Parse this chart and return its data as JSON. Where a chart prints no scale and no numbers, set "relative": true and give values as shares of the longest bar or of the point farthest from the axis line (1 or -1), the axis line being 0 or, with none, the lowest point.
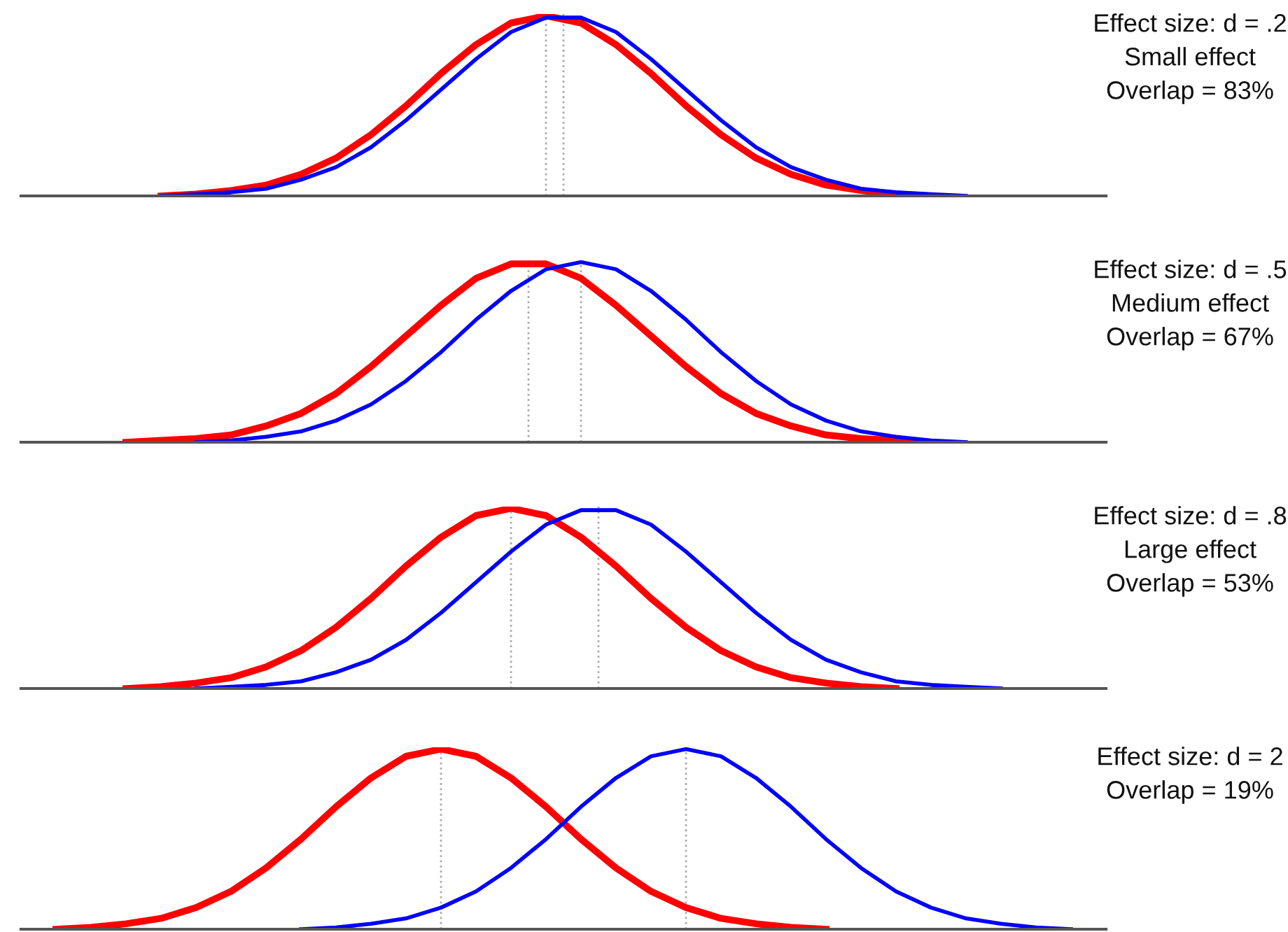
{
  "chart_data": [
    {
      "type": "line",
      "relative": true,
      "categories": [
        null,
        null,
        null,
        null,
        null,
        null,
        null,
        null,
        null,
        null,
        null,
        null,
        null,
        null,
        null,
        null,
        null,
        null,
        null,
        null,
        null,
        null,
        null,
        null,
        null,
        null,
        null,
        null,
        null,
        null,
        null,
        null
      ],
      "series": [
        {
          "color": "#ff0000",
          "values": [
            null,
            null,
            null,
            null,
            0,
            0.01,
            0.03,
            0.06,
            0.12,
            0.21,
            0.34,
            0.5,
            0.68,
            0.84,
            0.96,
            1,
            0.96,
            0.84,
            0.68,
            0.5,
            0.34,
            0.21,
            0.12,
            0.06,
            0.03,
            0.01,
            0,
            null,
            null,
            null,
            null,
            null
          ]
        },
        {
          "color": "#0000ff",
          "values": [
            null,
            null,
            null,
            null,
            0,
            0.01,
            0.02,
            0.04,
            0.09,
            0.16,
            0.27,
            0.42,
            0.59,
            0.76,
            0.91,
            0.99,
            0.99,
            0.91,
            0.76,
            0.59,
            0.42,
            0.27,
            0.16,
            0.09,
            0.04,
            0.02,
            0.01,
            0,
            null,
            null,
            null,
            null
          ]
        }
      ],
      "annotations": [
        "Effect size: d = .2",
        "Small effect",
        "Overlap = 83%"
      ]
    },
    {
      "type": "line",
      "relative": true,
      "categories": [
        null,
        null,
        null,
        null,
        null,
        null,
        null,
        null,
        null,
        null,
        null,
        null,
        null,
        null,
        null,
        null,
        null,
        null,
        null,
        null,
        null,
        null,
        null,
        null,
        null,
        null,
        null,
        null,
        null,
        null,
        null,
        null
      ],
      "series": [
        {
          "color": "#ff0000",
          "values": [
            null,
            null,
            null,
            0,
            0.01,
            0.02,
            0.04,
            0.09,
            0.16,
            0.27,
            0.42,
            0.59,
            0.76,
            0.91,
            0.99,
            0.99,
            0.91,
            0.76,
            0.59,
            0.42,
            0.27,
            0.16,
            0.09,
            0.04,
            0.02,
            0.01,
            0,
            null,
            null,
            null,
            null,
            null
          ]
        },
        {
          "color": "#0000ff",
          "values": [
            null,
            null,
            null,
            null,
            null,
            0,
            0.01,
            0.03,
            0.06,
            0.12,
            0.21,
            0.34,
            0.5,
            0.68,
            0.84,
            0.96,
            1,
            0.96,
            0.84,
            0.68,
            0.5,
            0.34,
            0.21,
            0.12,
            0.06,
            0.03,
            0.01,
            0,
            null,
            null,
            null,
            null
          ]
        }
      ],
      "annotations": [
        "Effect size: d = .5",
        "Medium effect",
        "Overlap = 67%"
      ]
    },
    {
      "type": "line",
      "relative": true,
      "categories": [
        null,
        null,
        null,
        null,
        null,
        null,
        null,
        null,
        null,
        null,
        null,
        null,
        null,
        null,
        null,
        null,
        null,
        null,
        null,
        null,
        null,
        null,
        null,
        null,
        null,
        null,
        null,
        null,
        null,
        null,
        null,
        null
      ],
      "series": [
        {
          "color": "#ff0000",
          "values": [
            null,
            null,
            null,
            0,
            0.01,
            0.03,
            0.06,
            0.12,
            0.21,
            0.34,
            0.5,
            0.68,
            0.84,
            0.96,
            1,
            0.96,
            0.84,
            0.68,
            0.5,
            0.34,
            0.21,
            0.12,
            0.06,
            0.03,
            0.01,
            0,
            null,
            null,
            null,
            null,
            null,
            null
          ]
        },
        {
          "color": "#0000ff",
          "values": [
            null,
            null,
            null,
            null,
            null,
            0,
            0.01,
            0.02,
            0.04,
            0.09,
            0.16,
            0.27,
            0.42,
            0.59,
            0.76,
            0.91,
            0.99,
            0.99,
            0.91,
            0.76,
            0.59,
            0.42,
            0.27,
            0.16,
            0.09,
            0.04,
            0.02,
            0.01,
            0,
            null,
            null,
            null
          ]
        }
      ],
      "annotations": [
        "Effect size: d = .8",
        "Large effect",
        "Overlap = 53%"
      ]
    },
    {
      "type": "line",
      "relative": true,
      "categories": [
        null,
        null,
        null,
        null,
        null,
        null,
        null,
        null,
        null,
        null,
        null,
        null,
        null,
        null,
        null,
        null,
        null,
        null,
        null,
        null,
        null,
        null,
        null,
        null,
        null,
        null,
        null,
        null,
        null,
        null,
        null,
        null
      ],
      "series": [
        {
          "color": "#ff0000",
          "values": [
            null,
            0,
            0.01,
            0.03,
            0.06,
            0.12,
            0.21,
            0.34,
            0.5,
            0.68,
            0.84,
            0.96,
            1,
            0.96,
            0.84,
            0.68,
            0.5,
            0.34,
            0.21,
            0.12,
            0.06,
            0.03,
            0.01,
            0,
            null,
            null,
            null,
            null,
            null,
            null,
            null,
            null
          ]
        },
        {
          "color": "#0000ff",
          "values": [
            null,
            null,
            null,
            null,
            null,
            null,
            null,
            null,
            0,
            0.01,
            0.03,
            0.06,
            0.12,
            0.21,
            0.34,
            0.5,
            0.68,
            0.84,
            0.96,
            1,
            0.96,
            0.84,
            0.68,
            0.5,
            0.34,
            0.21,
            0.12,
            0.06,
            0.03,
            0.01,
            0,
            null
          ]
        }
      ],
      "annotations": [
        "Effect size: d = 2",
        "Overlap = 19%"
      ]
    }
  ]
}
